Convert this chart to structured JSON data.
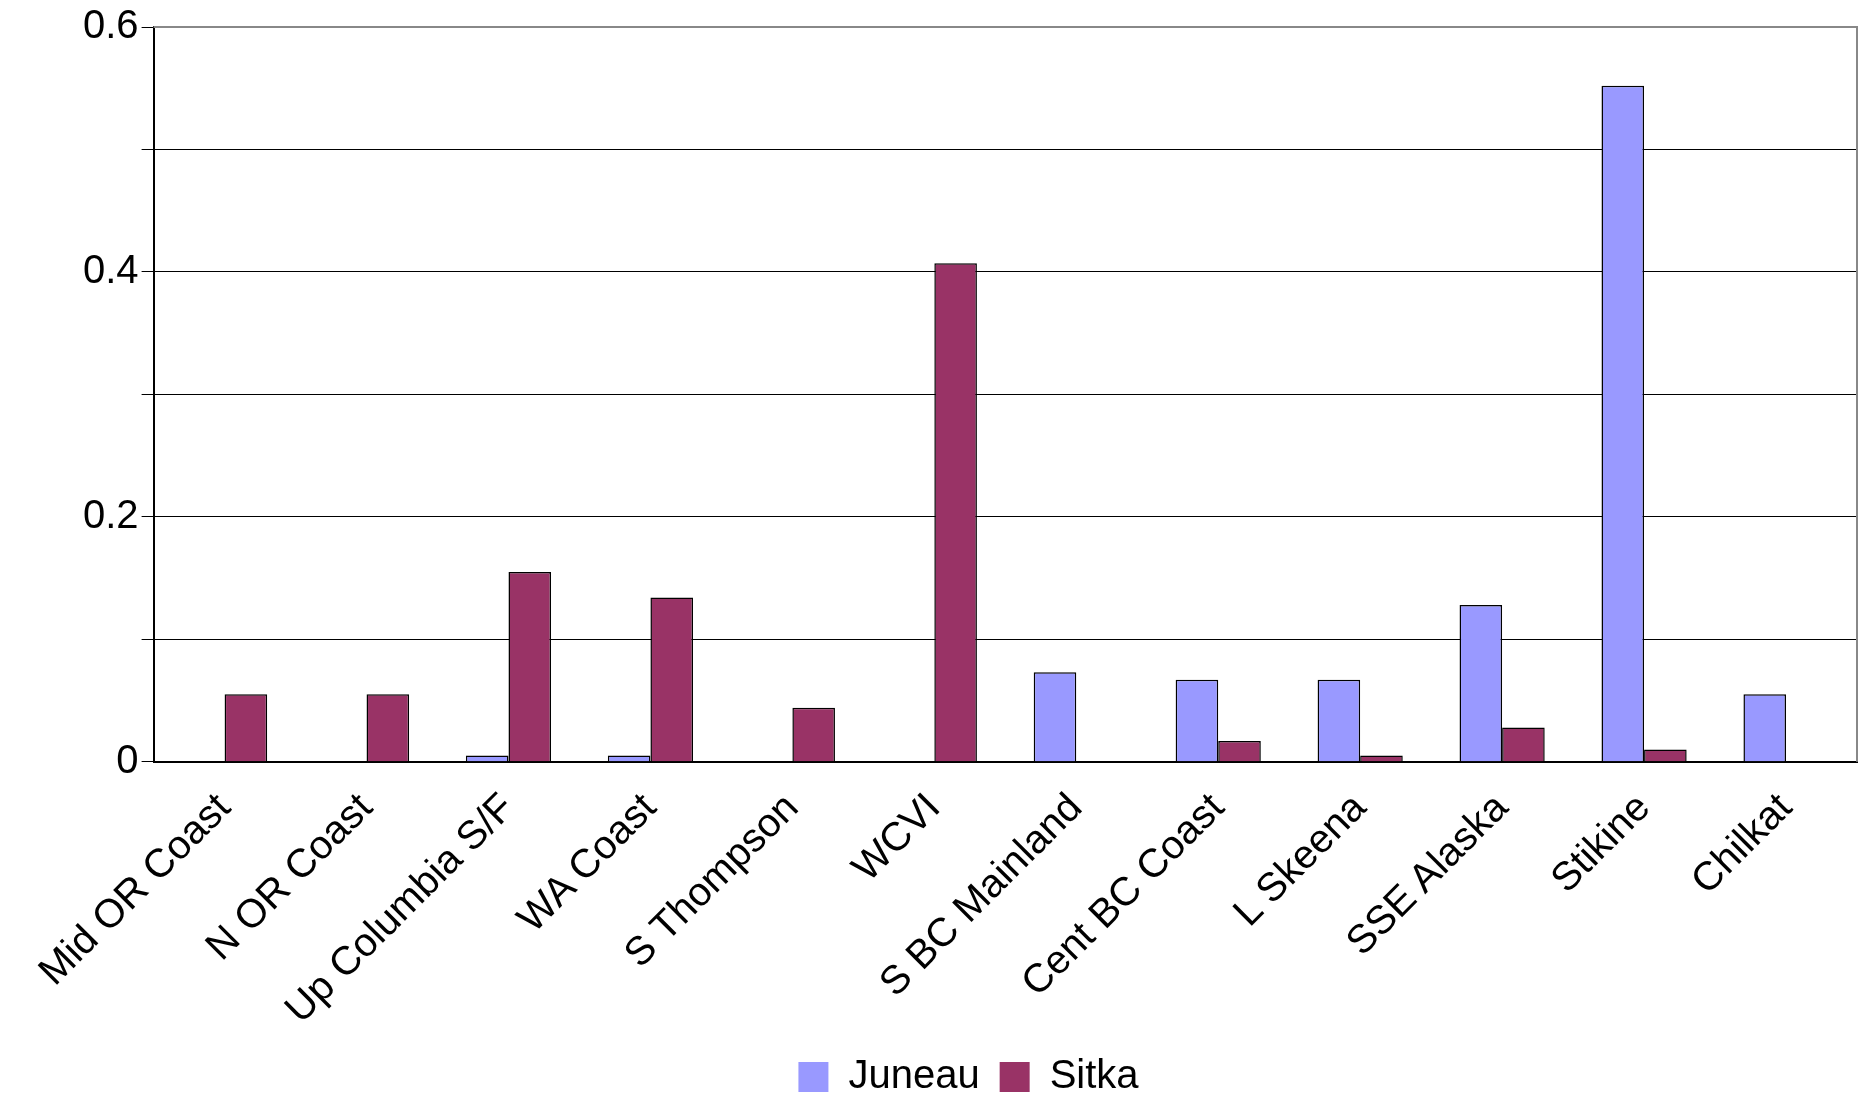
{
  "chart_data": {
    "type": "bar",
    "categories": [
      "Mid OR Coast",
      "N OR Coast",
      "Up Columbia S/F",
      "WA Coast",
      "S Thompson",
      "WCVI",
      "S BC Mainland",
      "Cent BC Coast",
      "L Skeena",
      "SSE Alaska",
      "Stikine",
      "Chilkat"
    ],
    "series": [
      {
        "name": "Juneau",
        "color": "#9999ff",
        "values": [
          null,
          null,
          0.005,
          0.005,
          null,
          null,
          0.073,
          0.067,
          0.067,
          0.128,
          0.552,
          0.055
        ]
      },
      {
        "name": "Sitka",
        "color": "#993366",
        "values": [
          0.055,
          0.055,
          0.155,
          0.134,
          0.044,
          0.407,
          null,
          0.017,
          0.005,
          0.028,
          0.01,
          null
        ]
      }
    ],
    "ylim": [
      0,
      0.6
    ],
    "yticks": [
      0,
      {
        "value": 0.1,
        "label": null
      },
      0.2,
      {
        "value": 0.3,
        "label": null
      },
      0.4,
      {
        "value": 0.5,
        "label": null
      },
      0.6
    ],
    "grid": "y",
    "legend": "bottom"
  }
}
